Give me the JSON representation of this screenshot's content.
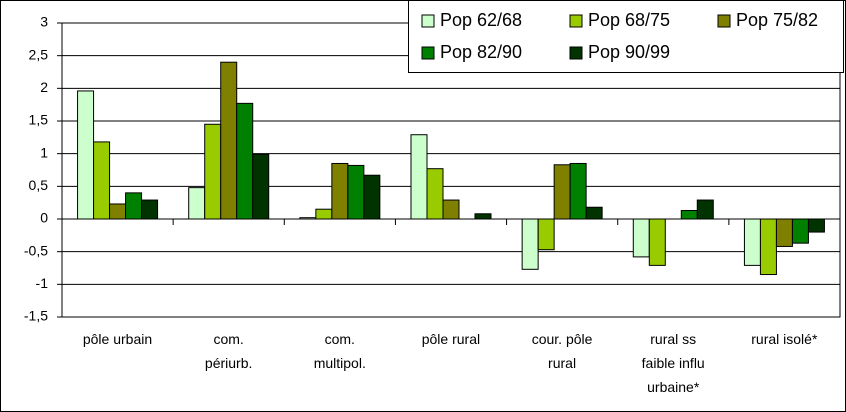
{
  "chart_data": {
    "type": "bar",
    "categories": [
      "pôle urbain",
      "com.\npériurb.",
      "com.\nmultipol.",
      "pôle rural",
      "cour. pôle\nrural",
      "rural ss\nfaible influ\nurbaine*",
      "rural isolé*"
    ],
    "series": [
      {
        "name": "Pop 62/68",
        "color": "#ccffcc",
        "values": [
          1.96,
          0.48,
          0.02,
          1.29,
          -0.77,
          -0.58,
          -0.71
        ]
      },
      {
        "name": "Pop 68/75",
        "color": "#99cc00",
        "values": [
          1.18,
          1.45,
          0.15,
          0.77,
          -0.47,
          -0.71,
          -0.85
        ]
      },
      {
        "name": "Pop 75/82",
        "color": "#808000",
        "values": [
          0.23,
          2.4,
          0.85,
          0.29,
          0.83,
          0,
          -0.42
        ]
      },
      {
        "name": "Pop 82/90",
        "color": "#008000",
        "values": [
          0.4,
          1.77,
          0.82,
          0,
          0.85,
          0.13,
          -0.37
        ]
      },
      {
        "name": "Pop 90/99",
        "color": "#003300",
        "values": [
          0.29,
          0.99,
          0.67,
          0.08,
          0.18,
          0.29,
          -0.2
        ]
      }
    ],
    "ylim": [
      -1.5,
      3
    ],
    "yticks": [
      {
        "value": -1.5,
        "label": "-1,5"
      },
      -1,
      {
        "value": -0.5,
        "label": "-0,5"
      },
      0,
      {
        "value": 0.5,
        "label": "0,5"
      },
      1,
      {
        "value": 1.5,
        "label": "1,5"
      },
      2,
      {
        "value": 2.5,
        "label": "2,5"
      },
      3
    ],
    "grid": true,
    "legend": "top-right"
  }
}
